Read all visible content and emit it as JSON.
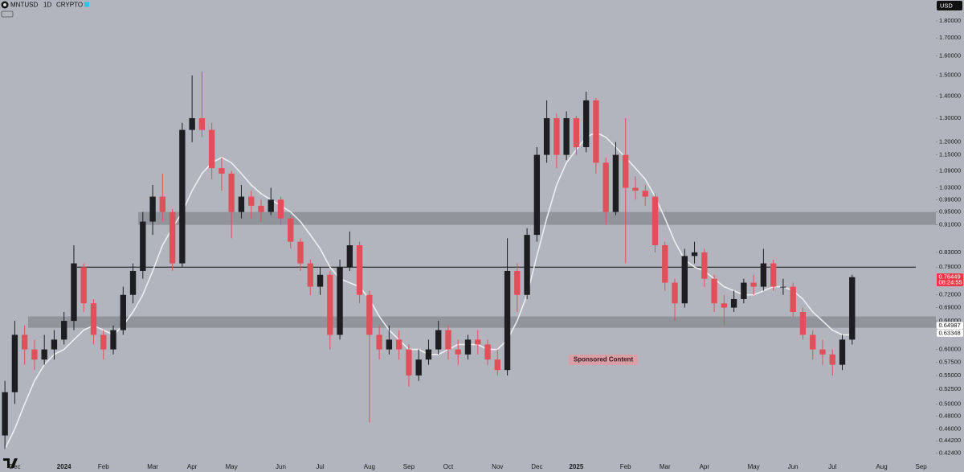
{
  "chart_data": {
    "type": "candlestick",
    "title": "MNTUSD",
    "interval": "1D",
    "exchange": "CRYPTO",
    "currency": "USD",
    "annotation": "Sponsored Content",
    "log_scale": true,
    "grid": false,
    "up_color": "#1e1e22",
    "down_color": "#e0505b",
    "categories": [
      null,
      "Dec",
      null,
      null,
      null,
      null,
      "2024",
      null,
      null,
      null,
      "Feb",
      null,
      null,
      null,
      null,
      "Mar",
      null,
      null,
      null,
      "Apr",
      null,
      null,
      null,
      "May",
      null,
      null,
      null,
      null,
      "Jun",
      null,
      null,
      null,
      "Jul",
      null,
      null,
      null,
      null,
      "Aug",
      null,
      null,
      null,
      "Sep",
      null,
      null,
      null,
      "Oct",
      null,
      null,
      null,
      null,
      "Nov",
      null,
      null,
      null,
      "Dec",
      null,
      null,
      null,
      "2025",
      null,
      null,
      null,
      null,
      "Feb",
      null,
      null,
      null,
      "Mar",
      null,
      null,
      null,
      "Apr",
      null,
      null,
      null,
      null,
      "May",
      null,
      null,
      null,
      "Jun",
      null,
      null,
      null,
      "Jul",
      null,
      null,
      null,
      null,
      "Aug",
      null,
      null,
      null,
      "Sep",
      null
    ],
    "open": [
      0.45,
      0.52,
      0.63,
      0.6,
      0.58,
      0.6,
      0.62,
      0.66,
      0.79,
      0.7,
      0.63,
      0.6,
      0.64,
      0.72,
      0.78,
      0.92,
      1.0,
      0.95,
      0.8,
      1.25,
      1.3,
      1.25,
      1.1,
      1.08,
      0.95,
      1.0,
      0.97,
      0.95,
      0.99,
      0.93,
      0.86,
      0.8,
      0.74,
      0.77,
      0.63,
      0.79,
      0.85,
      0.72,
      0.63,
      0.6,
      0.62,
      0.6,
      0.55,
      0.58,
      0.6,
      0.64,
      0.6,
      0.59,
      0.62,
      0.61,
      0.58,
      0.56,
      0.78,
      0.72,
      0.88,
      1.15,
      1.3,
      1.15,
      1.3,
      1.18,
      1.38,
      1.12,
      0.95,
      1.15,
      1.03,
      1.02,
      1.0,
      0.85,
      0.75,
      0.7,
      0.82,
      0.83,
      0.76,
      0.7,
      0.69,
      0.71,
      0.75,
      0.74,
      0.8,
      0.74,
      0.74,
      0.68,
      0.63,
      0.6,
      0.59,
      0.57,
      0.62,
      null,
      null,
      null,
      null,
      null,
      null,
      null,
      null
    ],
    "high": [
      0.54,
      0.66,
      0.65,
      0.62,
      0.63,
      0.64,
      0.68,
      0.85,
      0.8,
      0.71,
      0.64,
      0.65,
      0.74,
      0.8,
      0.95,
      1.04,
      1.08,
      0.96,
      1.28,
      1.5,
      1.52,
      1.28,
      1.14,
      1.09,
      1.04,
      1.02,
      0.99,
      1.03,
      1.0,
      0.94,
      0.87,
      0.81,
      0.79,
      0.78,
      0.81,
      0.89,
      0.86,
      0.73,
      0.65,
      0.65,
      0.64,
      0.61,
      0.6,
      0.62,
      0.66,
      0.65,
      0.62,
      0.63,
      0.64,
      0.62,
      0.6,
      0.87,
      0.8,
      0.9,
      1.18,
      1.38,
      1.32,
      1.33,
      1.31,
      1.42,
      1.39,
      1.14,
      1.2,
      1.3,
      1.07,
      1.04,
      1.01,
      0.86,
      0.76,
      0.84,
      0.86,
      0.84,
      0.77,
      0.72,
      0.73,
      0.76,
      0.77,
      0.84,
      0.81,
      0.76,
      0.75,
      0.69,
      0.64,
      0.62,
      0.6,
      0.63,
      0.77,
      null,
      null,
      null,
      null,
      null,
      null,
      null,
      null
    ],
    "low": [
      0.43,
      0.5,
      0.57,
      0.56,
      0.57,
      0.58,
      0.61,
      0.64,
      0.68,
      0.61,
      0.58,
      0.59,
      0.63,
      0.7,
      0.76,
      0.88,
      0.92,
      0.78,
      0.79,
      1.2,
      1.22,
      1.06,
      1.02,
      0.87,
      0.93,
      0.93,
      0.92,
      0.94,
      0.91,
      0.84,
      0.78,
      0.72,
      0.72,
      0.6,
      0.62,
      0.78,
      0.7,
      0.47,
      0.58,
      0.59,
      0.58,
      0.53,
      0.54,
      0.57,
      0.59,
      0.58,
      0.57,
      0.58,
      0.59,
      0.57,
      0.55,
      0.55,
      0.68,
      0.71,
      0.86,
      1.12,
      1.1,
      1.13,
      1.15,
      1.16,
      1.08,
      0.91,
      0.94,
      0.8,
      0.99,
      0.97,
      0.83,
      0.73,
      0.66,
      0.69,
      0.8,
      0.74,
      0.68,
      0.65,
      0.68,
      0.7,
      0.72,
      0.73,
      0.73,
      0.72,
      0.67,
      0.62,
      0.58,
      0.57,
      0.55,
      0.56,
      0.61,
      null,
      null,
      null,
      null,
      null,
      null,
      null,
      null
    ],
    "close": [
      0.52,
      0.63,
      0.6,
      0.58,
      0.6,
      0.62,
      0.66,
      0.8,
      0.7,
      0.63,
      0.6,
      0.64,
      0.72,
      0.78,
      0.92,
      1.0,
      0.95,
      0.8,
      1.25,
      1.3,
      1.25,
      1.1,
      1.08,
      0.95,
      1.0,
      0.97,
      0.95,
      0.99,
      0.93,
      0.86,
      0.8,
      0.74,
      0.77,
      0.63,
      0.79,
      0.85,
      0.72,
      0.63,
      0.6,
      0.62,
      0.6,
      0.55,
      0.58,
      0.6,
      0.64,
      0.6,
      0.59,
      0.62,
      0.61,
      0.58,
      0.56,
      0.78,
      0.72,
      0.88,
      1.15,
      1.3,
      1.15,
      1.3,
      1.18,
      1.38,
      1.12,
      0.95,
      1.15,
      1.03,
      1.02,
      1.0,
      0.85,
      0.75,
      0.7,
      0.82,
      0.83,
      0.76,
      0.7,
      0.69,
      0.71,
      0.75,
      0.74,
      0.8,
      0.74,
      0.74,
      0.68,
      0.63,
      0.6,
      0.59,
      0.57,
      0.62,
      0.764,
      null,
      null,
      null,
      null,
      null,
      null,
      null,
      null
    ],
    "moving_average": {
      "color": "#f4f4f6",
      "values": [
        0.43,
        0.46,
        0.5,
        0.54,
        0.57,
        0.59,
        0.6,
        0.62,
        0.64,
        0.65,
        0.64,
        0.63,
        0.65,
        0.68,
        0.72,
        0.78,
        0.85,
        0.9,
        0.95,
        1.02,
        1.08,
        1.12,
        1.14,
        1.12,
        1.08,
        1.04,
        1.01,
        0.99,
        0.97,
        0.95,
        0.92,
        0.88,
        0.84,
        0.79,
        0.76,
        0.75,
        0.74,
        0.71,
        0.67,
        0.64,
        0.62,
        0.6,
        0.6,
        0.59,
        0.59,
        0.6,
        0.61,
        0.61,
        0.61,
        0.6,
        0.6,
        0.62,
        0.66,
        0.72,
        0.82,
        0.93,
        1.04,
        1.12,
        1.17,
        1.22,
        1.24,
        1.22,
        1.18,
        1.14,
        1.1,
        1.06,
        1.0,
        0.93,
        0.86,
        0.81,
        0.79,
        0.78,
        0.76,
        0.74,
        0.73,
        0.72,
        0.72,
        0.73,
        0.74,
        0.74,
        0.73,
        0.71,
        0.68,
        0.66,
        0.64,
        0.63,
        0.63,
        null,
        null,
        null,
        null,
        null,
        null,
        null,
        null
      ]
    },
    "zones": [
      {
        "low": 0.91,
        "high": 0.95
      },
      {
        "low": 0.645,
        "high": 0.67
      }
    ],
    "zone_color": "#8c8e95",
    "level": 0.79,
    "price_tags": [
      {
        "value": 0.76449,
        "label": "0.76449",
        "color": "#f23645"
      },
      {
        "value": 0.64987,
        "label": "0.64987",
        "color": "#ffffff"
      },
      {
        "value": 0.63348,
        "label": "0.63348",
        "color": "#ffffff"
      }
    ],
    "countdown": "08:24:55",
    "ylim": [
      0.408,
      1.93
    ],
    "yticks": [
      {
        "value": 1.8,
        "label": "1.80000"
      },
      {
        "value": 1.7,
        "label": "1.70000"
      },
      {
        "value": 1.6,
        "label": "1.60000"
      },
      {
        "value": 1.5,
        "label": "1.50000"
      },
      {
        "value": 1.4,
        "label": "1.40000"
      },
      {
        "value": 1.3,
        "label": "1.30000"
      },
      {
        "value": 1.2,
        "label": "1.20000"
      },
      {
        "value": 1.15,
        "label": "1.15000"
      },
      {
        "value": 1.09,
        "label": "1.09000"
      },
      {
        "value": 1.03,
        "label": "1.03000"
      },
      {
        "value": 0.99,
        "label": "0.99000"
      },
      {
        "value": 0.95,
        "label": "0.95000"
      },
      {
        "value": 0.91,
        "label": "0.91000"
      },
      {
        "value": 0.83,
        "label": "0.83000"
      },
      {
        "value": 0.79,
        "label": "0.79000"
      },
      {
        "value": 0.72,
        "label": "0.72000"
      },
      {
        "value": 0.69,
        "label": "0.69000"
      },
      {
        "value": 0.66,
        "label": "0.66000"
      },
      {
        "value": 0.6,
        "label": "0.60000"
      },
      {
        "value": 0.575,
        "label": "0.57500"
      },
      {
        "value": 0.55,
        "label": "0.55000"
      },
      {
        "value": 0.525,
        "label": "0.52500"
      },
      {
        "value": 0.5,
        "label": "0.50000"
      },
      {
        "value": 0.48,
        "label": "0.48000"
      },
      {
        "value": 0.46,
        "label": "0.46000"
      },
      {
        "value": 0.442,
        "label": "0.44200"
      },
      {
        "value": 0.424,
        "label": "0.42400"
      }
    ]
  }
}
